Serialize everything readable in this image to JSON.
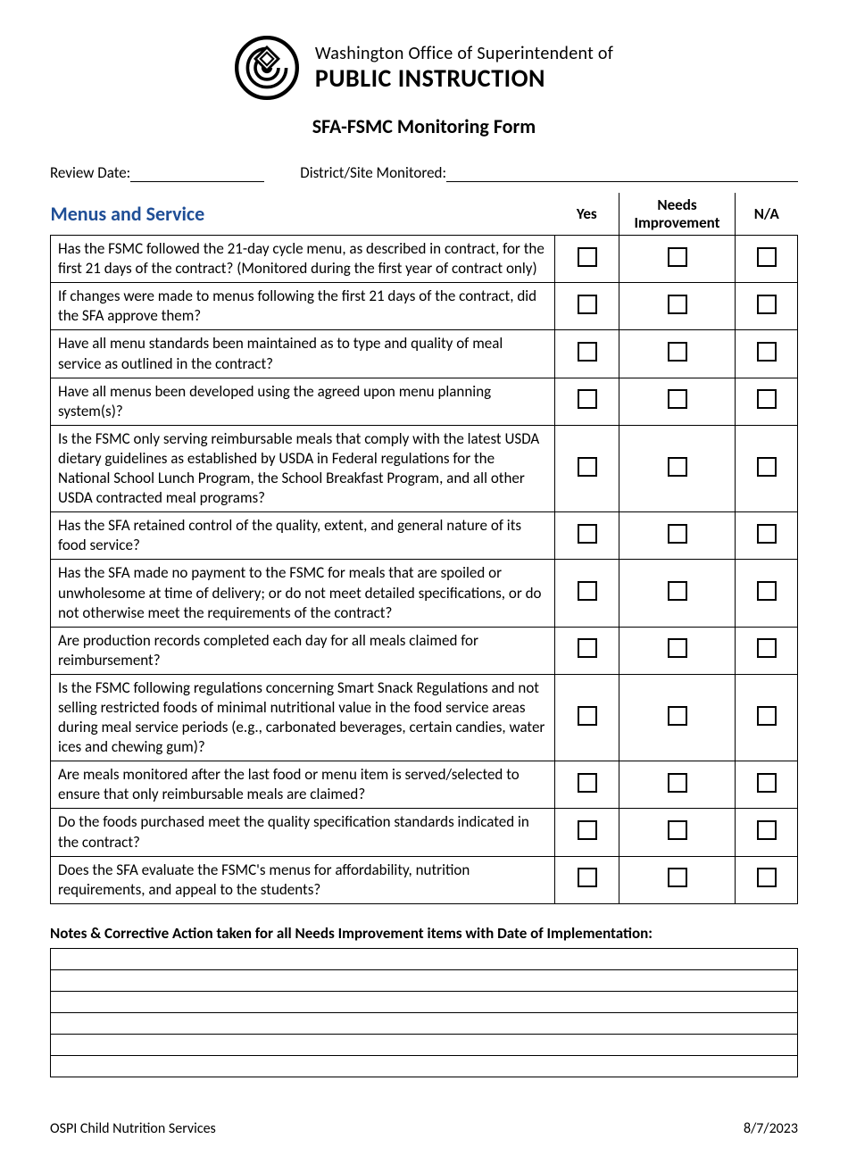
{
  "header": {
    "org_line1": "Washington Office of Superintendent of",
    "org_line2": "PUBLIC INSTRUCTION",
    "form_title": "SFA-FSMC Monitoring Form"
  },
  "meta": {
    "review_date_label": "Review Date:",
    "district_label": "District/Site Monitored:"
  },
  "section": {
    "title": "Menus and Service",
    "title_color": "#1f4e96",
    "columns": {
      "yes": "Yes",
      "needs": "Needs Improvement",
      "na": "N/A"
    }
  },
  "questions": [
    "Has the FSMC followed the 21-day cycle menu, as described in contract, for the first 21 days of the contract? (Monitored during the first year of contract only)",
    "If changes were made to menus following the first 21 days of the contract, did the SFA approve them?",
    "Have all menu standards been maintained as to type and quality of meal service as outlined in the contract?",
    "Have all menus been developed using the agreed upon menu planning system(s)?",
    "Is the FSMC only serving reimbursable meals that comply with the latest USDA dietary guidelines as established by USDA in Federal regulations for the National School Lunch Program, the School Breakfast Program, and all other USDA contracted meal programs?",
    "Has the SFA retained control of the quality, extent, and general nature of its food service?",
    "Has the SFA made no payment to the FSMC for meals that are spoiled or unwholesome at time of delivery; or do not meet detailed specifications, or do not otherwise meet the requirements of the contract?",
    "Are production records completed each day for all meals claimed for reimbursement?",
    "Is the FSMC following regulations concerning Smart Snack Regulations and not selling restricted foods of minimal nutritional value in the food service areas during meal service periods (e.g., carbonated beverages, certain candies, water ices and chewing gum)?",
    "Are meals monitored after the last food or menu item is served/selected to ensure that only reimbursable meals are claimed?",
    "Do the foods purchased meet the quality specification standards indicated in the contract?",
    "Does the SFA evaluate the FSMC's menus for affordability, nutrition requirements, and appeal to the students?"
  ],
  "notes": {
    "heading": "Notes & Corrective Action taken for all Needs Improvement items with Date of Implementation:",
    "row_count": 6
  },
  "footer": {
    "left": "OSPI Child Nutrition Services",
    "right": "8/7/2023"
  }
}
